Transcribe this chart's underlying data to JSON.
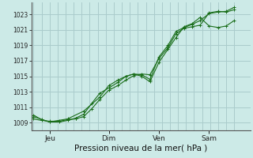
{
  "bg_color": "#cceae7",
  "grid_color": "#aacccc",
  "line_color": "#1a6e1a",
  "title": "Pression niveau de la mer( hPa )",
  "ylabel_ticks": [
    1009,
    1011,
    1013,
    1015,
    1017,
    1019,
    1021,
    1023
  ],
  "xlabels": [
    "Jeu",
    "Dim",
    "Ven",
    "Sam"
  ],
  "xtick_positions": [
    0.083,
    0.375,
    0.625,
    0.875
  ],
  "ylim": [
    1008.0,
    1024.5
  ],
  "xlim": [
    -0.01,
    1.08
  ],
  "n_vlines": 25,
  "series1_x": [
    0.0,
    0.04,
    0.08,
    0.13,
    0.17,
    0.21,
    0.25,
    0.29,
    0.33,
    0.375,
    0.42,
    0.46,
    0.5,
    0.54,
    0.58,
    0.625,
    0.67,
    0.71,
    0.75,
    0.79,
    0.83,
    0.875,
    0.92,
    0.96,
    1.0
  ],
  "series1_y": [
    1009.5,
    1009.3,
    1009.2,
    1009.2,
    1009.4,
    1009.5,
    1009.8,
    1010.8,
    1012.0,
    1013.2,
    1013.8,
    1014.5,
    1015.1,
    1015.3,
    1015.2,
    1017.3,
    1018.7,
    1020.5,
    1021.2,
    1021.4,
    1021.6,
    1023.2,
    1023.4,
    1023.3,
    1023.6
  ],
  "series2_x": [
    0.0,
    0.04,
    0.08,
    0.13,
    0.17,
    0.21,
    0.25,
    0.29,
    0.33,
    0.375,
    0.42,
    0.46,
    0.5,
    0.54,
    0.58,
    0.625,
    0.67,
    0.71,
    0.75,
    0.79,
    0.83,
    0.875,
    0.92,
    0.96,
    1.0
  ],
  "series2_y": [
    1010.0,
    1009.4,
    1009.1,
    1009.1,
    1009.3,
    1009.6,
    1010.1,
    1011.5,
    1012.8,
    1013.5,
    1014.2,
    1015.0,
    1015.3,
    1015.2,
    1014.6,
    1017.5,
    1019.0,
    1020.8,
    1021.3,
    1021.7,
    1022.2,
    1023.1,
    1023.3,
    1023.4,
    1023.9
  ],
  "series3_x": [
    0.0,
    0.08,
    0.17,
    0.25,
    0.33,
    0.375,
    0.42,
    0.46,
    0.5,
    0.54,
    0.58,
    0.625,
    0.67,
    0.71,
    0.75,
    0.79,
    0.83,
    0.875,
    0.92,
    0.96,
    1.0
  ],
  "series3_y": [
    1009.8,
    1009.1,
    1009.5,
    1010.5,
    1012.3,
    1013.8,
    1014.5,
    1015.0,
    1015.3,
    1015.0,
    1014.3,
    1016.8,
    1018.5,
    1020.0,
    1021.4,
    1021.8,
    1022.6,
    1021.5,
    1021.3,
    1021.5,
    1022.2
  ]
}
